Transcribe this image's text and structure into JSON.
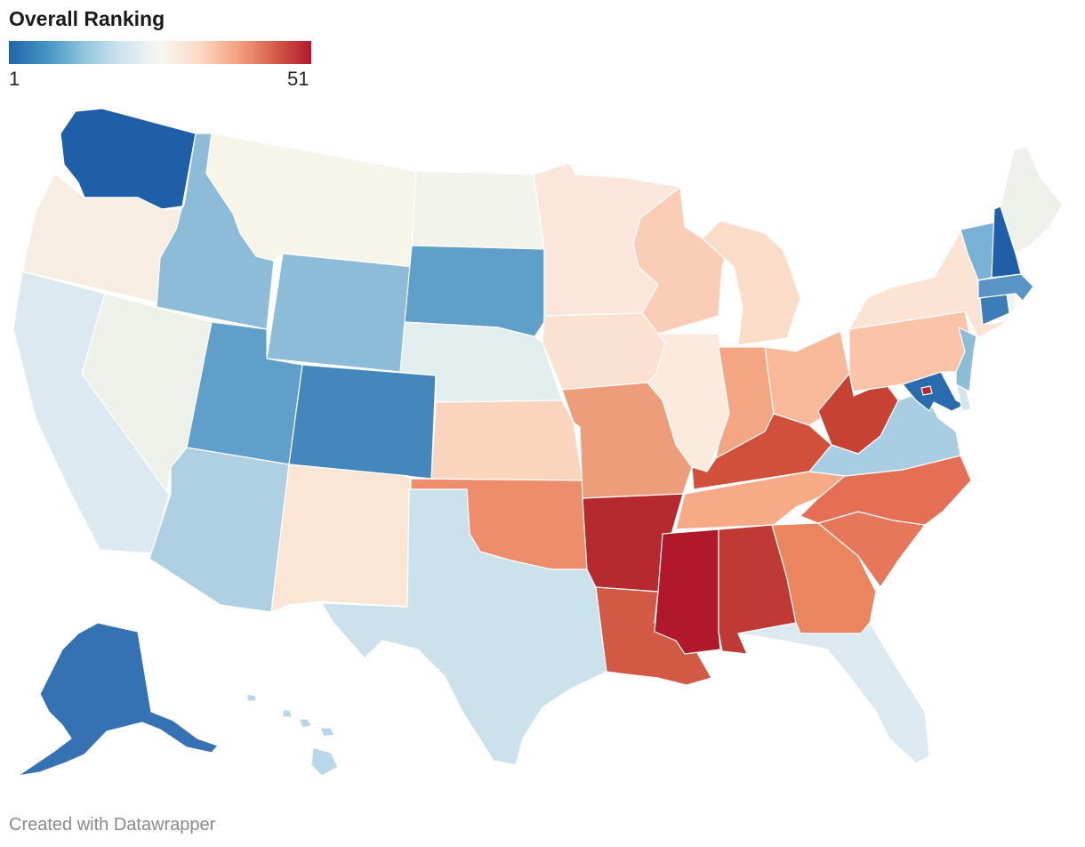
{
  "title": "Overall Ranking",
  "legend": {
    "min_label": "1",
    "max_label": "51",
    "min_value": 1,
    "max_value": 51,
    "colors": [
      "#2166ac",
      "#4393c3",
      "#92c5de",
      "#d1e5f0",
      "#f7f7f2",
      "#fddbc7",
      "#f4a582",
      "#d6604d",
      "#b2182b"
    ]
  },
  "footer": "Created with Datawrapper",
  "states": {
    "WA": "#1f5fa8",
    "OR": "#f7ede2",
    "CA": "#dce9f0",
    "NV": "#eef0ea",
    "ID": "#8dbcd9",
    "MT": "#f7f5ea",
    "WY": "#8dbcd9",
    "UT": "#5f9fca",
    "AZ": "#afd0e3",
    "CO": "#4487bd",
    "NM": "#fbe6d6",
    "ND": "#f2f3ec",
    "SD": "#5f9fca",
    "NE": "#e2eded",
    "KS": "#fbd4be",
    "OK": "#ee8d6b",
    "TX": "#cbe1ec",
    "MN": "#fae6da",
    "IA": "#fbe1d2",
    "MO": "#ee9d7a",
    "AR": "#b6292e",
    "LA": "#d25a44",
    "WI": "#fbcdb7",
    "IL": "#fdeadf",
    "MI": "#fbdcc8",
    "IN": "#f4a582",
    "OH": "#f8b89a",
    "KY": "#d0503c",
    "TN": "#f6aa85",
    "MS": "#b2182b",
    "AL": "#c03a35",
    "GA": "#ea855f",
    "FL": "#dce9f0",
    "SC": "#e6775a",
    "NC": "#e46f55",
    "VA": "#a9cde2",
    "WV": "#c84233",
    "MD": "#2a6cb0",
    "DE": "#d3e5ee",
    "PA": "#fbc4a9",
    "NJ": "#8dbcd9",
    "NY": "#fce4d5",
    "CT": "#3a7db8",
    "RI": "#f0f3ee",
    "MA": "#5a94c7",
    "VT": "#79b0d6",
    "NH": "#1f5fa8",
    "ME": "#eef0ea",
    "AK": "#3572b4",
    "HI": "#b9d7e8",
    "DC": "#b6292e"
  }
}
